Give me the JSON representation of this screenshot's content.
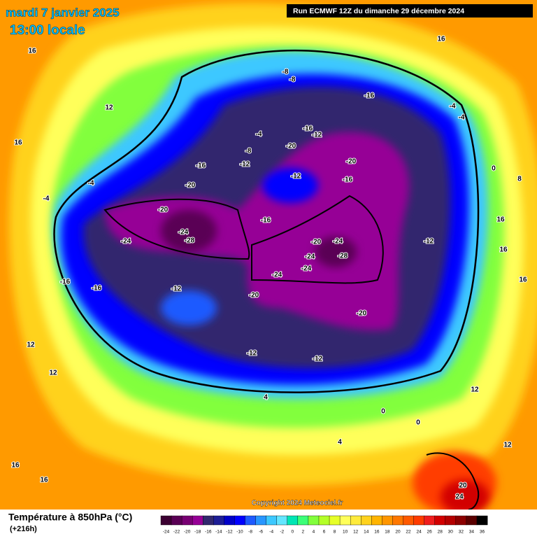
{
  "header": {
    "date": "mardi 7 janvier 2025",
    "time": "13:00 locale",
    "run": "Run ECMWF 12Z du dimanche 29 décembre 2024"
  },
  "copyright": "Copyright 2024 Meteociel.fr",
  "footer": {
    "title": "Température à 850hPa (°C)",
    "lead": "(+216h)"
  },
  "legend": {
    "labels": [
      -24,
      -22,
      -20,
      -18,
      -16,
      -14,
      -12,
      -10,
      -8,
      -6,
      -4,
      -2,
      0,
      2,
      4,
      6,
      8,
      10,
      12,
      14,
      16,
      18,
      20,
      22,
      24,
      26,
      28,
      30,
      32,
      34,
      36
    ],
    "colors": [
      "#3c0032",
      "#5a0055",
      "#780073",
      "#960096",
      "#32286e",
      "#1e1e96",
      "#0000c8",
      "#0000ff",
      "#1e5aff",
      "#2896ff",
      "#3cc8ff",
      "#64e6ff",
      "#00e6b4",
      "#3cff78",
      "#82ff3c",
      "#b4ff28",
      "#e6ff28",
      "#ffff5a",
      "#ffeb3c",
      "#ffd21e",
      "#ffb400",
      "#ff9600",
      "#ff7800",
      "#ff5a00",
      "#ff3c00",
      "#f01e1e",
      "#d20000",
      "#b40000",
      "#8c0000",
      "#5a0000",
      "#000000"
    ]
  },
  "map_labels": [
    16,
    12,
    16,
    16,
    -8,
    -8,
    -16,
    -4,
    -4,
    -16,
    -12,
    -4,
    -20,
    -8,
    -12,
    -16,
    -20,
    -12,
    -16,
    -20,
    -4,
    -4,
    -20,
    -16,
    -24,
    -28,
    -24,
    -20,
    -24,
    -28,
    -24,
    -24,
    -24,
    -16,
    -16,
    -12,
    -20,
    -20,
    -12,
    -12,
    0,
    8,
    16,
    16,
    16,
    12,
    12,
    16,
    16,
    20,
    24,
    12,
    12,
    0,
    0,
    4,
    4,
    -12
  ]
}
